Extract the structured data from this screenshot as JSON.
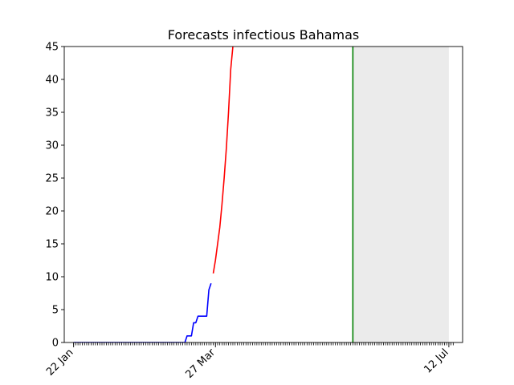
{
  "chart_data": {
    "type": "line",
    "title": "Forecasts infectious Bahamas",
    "xlabel": "",
    "ylabel": "",
    "x_start": "2020-01-22",
    "x_end": "2020-07-14",
    "ylim": [
      0,
      45
    ],
    "yticks": [
      0,
      5,
      10,
      15,
      20,
      25,
      30,
      35,
      40,
      45
    ],
    "xticks": [
      {
        "date": "2020-01-22",
        "label": "22 Jan"
      },
      {
        "date": "2020-03-27",
        "label": "27 Mar"
      },
      {
        "date": "2020-07-12",
        "label": "12 Jul"
      }
    ],
    "grid": false,
    "shaded_region": {
      "start": "2020-05-29",
      "end": "2020-07-12",
      "color": "#ebebeb"
    },
    "vertical_line": {
      "date": "2020-05-29",
      "color": "#008000"
    },
    "series": [
      {
        "color": "#0000ff",
        "points": [
          [
            "2020-01-22",
            0
          ],
          [
            "2020-03-13",
            0
          ],
          [
            "2020-03-14",
            1
          ],
          [
            "2020-03-15",
            1
          ],
          [
            "2020-03-16",
            1
          ],
          [
            "2020-03-17",
            3
          ],
          [
            "2020-03-18",
            3
          ],
          [
            "2020-03-19",
            4
          ],
          [
            "2020-03-20",
            4
          ],
          [
            "2020-03-21",
            4
          ],
          [
            "2020-03-22",
            4
          ],
          [
            "2020-03-23",
            4
          ],
          [
            "2020-03-24",
            8
          ],
          [
            "2020-03-25",
            9
          ]
        ]
      },
      {
        "color": "#ff0000",
        "points": [
          [
            "2020-03-26",
            10.5
          ],
          [
            "2020-03-27",
            12.5
          ],
          [
            "2020-03-28",
            15
          ],
          [
            "2020-03-29",
            17.5
          ],
          [
            "2020-03-30",
            21
          ],
          [
            "2020-03-31",
            25
          ],
          [
            "2020-04-01",
            29.5
          ],
          [
            "2020-04-02",
            35
          ],
          [
            "2020-04-03",
            41.5
          ],
          [
            "2020-04-04",
            45
          ]
        ]
      }
    ]
  }
}
